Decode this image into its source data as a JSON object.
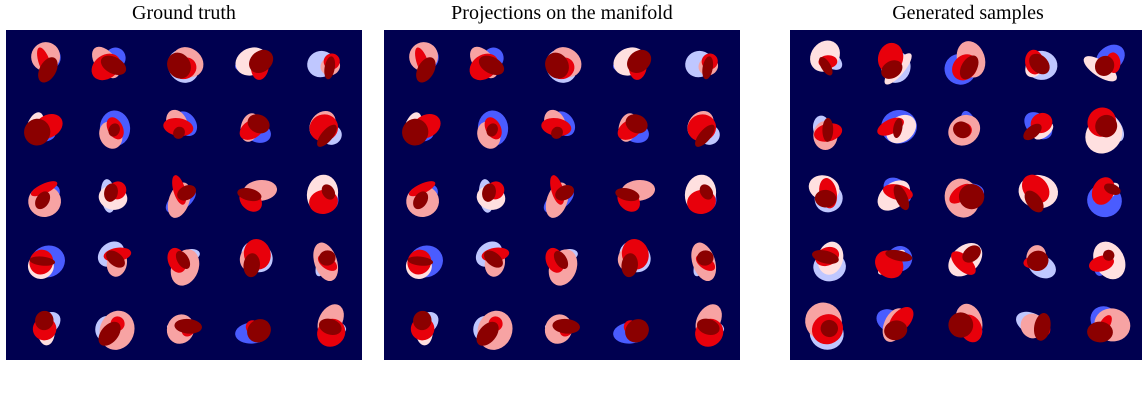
{
  "panels": [
    {
      "title": "Ground truth"
    },
    {
      "title": "Projections on the manifold"
    },
    {
      "title": "Generated samples"
    }
  ],
  "colors": {
    "background": "#000050",
    "dark_red": "#8b0000",
    "red": "#e8000b",
    "pink": "#f7a3a3",
    "light_pink": "#ffe0e0",
    "blue": "#4a5cff",
    "light_blue": "#bfc7ff"
  }
}
